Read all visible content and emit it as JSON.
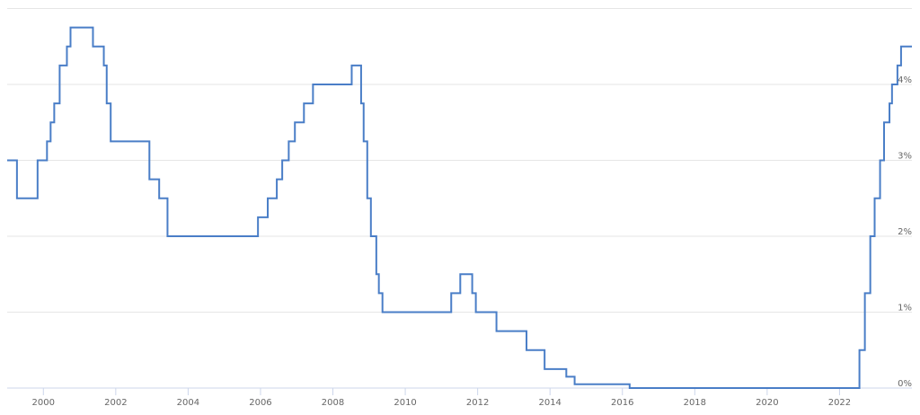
{
  "chart_data": {
    "type": "line",
    "step": "after",
    "grid": true,
    "xlim": [
      1999.0,
      2024.0
    ],
    "xticks": [
      2000,
      2002,
      2004,
      2006,
      2008,
      2010,
      2012,
      2014,
      2016,
      2018,
      2020,
      2022
    ],
    "ylim": [
      0,
      5
    ],
    "yticks": [
      {
        "value": 0,
        "label": "0%"
      },
      {
        "value": 1,
        "label": "1%"
      },
      {
        "value": 2,
        "label": "2%"
      },
      {
        "value": 3,
        "label": "3%"
      },
      {
        "value": 4,
        "label": "4%"
      }
    ],
    "series": [
      {
        "color": "#4a7ec7",
        "x": [
          1999.0,
          1999.27,
          1999.84,
          2000.1,
          2000.2,
          2000.3,
          2000.45,
          2000.65,
          2000.75,
          2001.37,
          2001.67,
          2001.75,
          2001.86,
          2002.93,
          2003.2,
          2003.43,
          2005.93,
          2006.2,
          2006.45,
          2006.6,
          2006.78,
          2006.95,
          2007.2,
          2007.45,
          2008.52,
          2008.78,
          2008.85,
          2008.95,
          2009.05,
          2009.2,
          2009.27,
          2009.37,
          2011.27,
          2011.52,
          2011.85,
          2011.95,
          2012.52,
          2013.35,
          2013.85,
          2014.45,
          2014.68,
          2016.2,
          2022.55,
          2022.7,
          2022.85,
          2022.97,
          2023.12,
          2023.23,
          2023.38,
          2023.45,
          2023.6,
          2023.7,
          2024.0
        ],
        "values": [
          3.0,
          2.5,
          3.0,
          3.25,
          3.5,
          3.75,
          4.25,
          4.5,
          4.75,
          4.5,
          4.25,
          3.75,
          3.25,
          2.75,
          2.5,
          2.0,
          2.25,
          2.5,
          2.75,
          3.0,
          3.25,
          3.5,
          3.75,
          4.0,
          4.25,
          3.75,
          3.25,
          2.5,
          2.0,
          1.5,
          1.25,
          1.0,
          1.25,
          1.5,
          1.25,
          1.0,
          0.75,
          0.5,
          0.25,
          0.15,
          0.05,
          0.0,
          0.5,
          1.25,
          2.0,
          2.5,
          3.0,
          3.5,
          3.75,
          4.0,
          4.25,
          4.5,
          4.5
        ]
      }
    ]
  }
}
